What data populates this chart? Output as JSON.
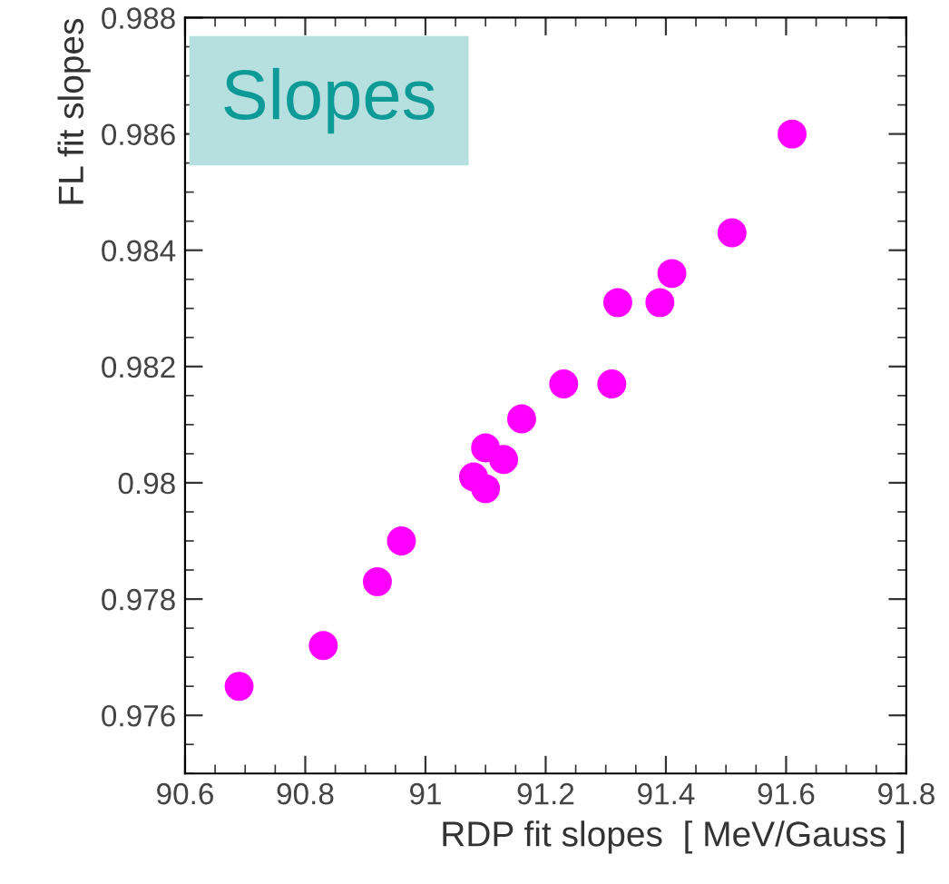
{
  "chart_data": {
    "type": "scatter",
    "title": "Slopes",
    "xlabel": "RDP fit slopes  [ MeV/Gauss ]",
    "ylabel": "FL fit slopes",
    "x": [
      90.69,
      90.83,
      90.92,
      90.96,
      91.08,
      91.1,
      91.1,
      91.13,
      91.16,
      91.23,
      91.31,
      91.32,
      91.39,
      91.41,
      91.51,
      91.61
    ],
    "series": [
      {
        "color": "#ff00ff",
        "values": [
          0.9765,
          0.9772,
          0.9783,
          0.979,
          0.9801,
          0.9806,
          0.9799,
          0.9804,
          0.9811,
          0.9817,
          0.9817,
          0.9831,
          0.9831,
          0.9836,
          0.9843,
          0.986
        ]
      }
    ],
    "xlim": [
      90.6,
      91.8
    ],
    "xticks": [
      90.6,
      90.8,
      91,
      91.2,
      91.4,
      91.6,
      91.8
    ],
    "ylim": [
      0.975,
      0.988
    ],
    "yticks": [
      0.976,
      0.978,
      0.98,
      0.982,
      0.984,
      0.986,
      0.988
    ],
    "marker": "circle",
    "grid": false,
    "legend": false
  }
}
